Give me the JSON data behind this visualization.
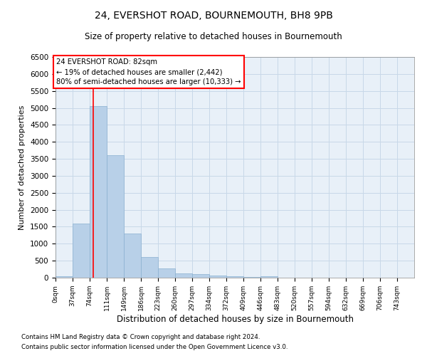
{
  "title": "24, EVERSHOT ROAD, BOURNEMOUTH, BH8 9PB",
  "subtitle": "Size of property relative to detached houses in Bournemouth",
  "xlabel": "Distribution of detached houses by size in Bournemouth",
  "ylabel": "Number of detached properties",
  "footnote1": "Contains HM Land Registry data © Crown copyright and database right 2024.",
  "footnote2": "Contains public sector information licensed under the Open Government Licence v3.0.",
  "categories": [
    "0sqm",
    "37sqm",
    "74sqm",
    "111sqm",
    "149sqm",
    "186sqm",
    "223sqm",
    "260sqm",
    "297sqm",
    "334sqm",
    "372sqm",
    "409sqm",
    "446sqm",
    "483sqm",
    "520sqm",
    "557sqm",
    "594sqm",
    "632sqm",
    "669sqm",
    "706sqm",
    "743sqm"
  ],
  "values": [
    50,
    1600,
    5050,
    3600,
    1300,
    600,
    280,
    120,
    100,
    70,
    50,
    30,
    50,
    10,
    5,
    3,
    2,
    1,
    1,
    0,
    0
  ],
  "bar_color": "#b8d0e8",
  "bar_edgecolor": "#8ab0d0",
  "grid_color": "#c8d8e8",
  "bg_color": "#e8f0f8",
  "annotation_box_text": "24 EVERSHOT ROAD: 82sqm\n← 19% of detached houses are smaller (2,442)\n80% of semi-detached houses are larger (10,333) →",
  "annotation_box_color": "white",
  "annotation_box_edgecolor": "red",
  "vline_color": "red",
  "ylim": [
    0,
    6500
  ],
  "bin_width": 37
}
